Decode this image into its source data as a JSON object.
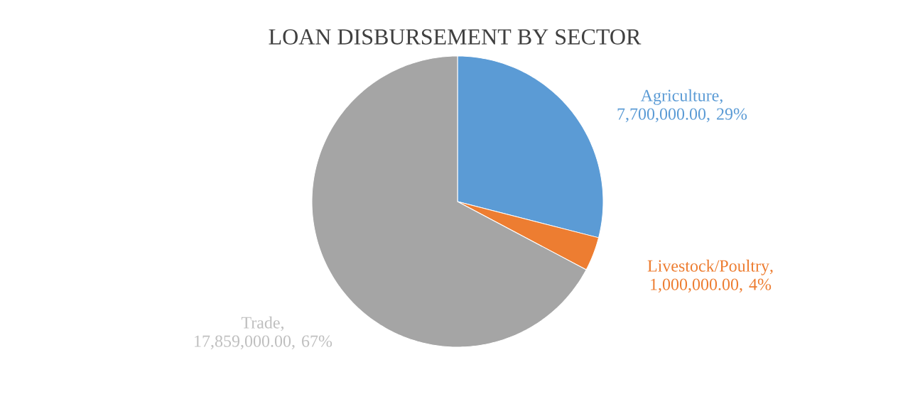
{
  "chart_data": {
    "type": "pie",
    "title": "LOAN DISBURSEMENT BY SECTOR",
    "categories": [
      "Agriculture",
      "Livestock/Poultry",
      "Trade"
    ],
    "values": [
      7700000,
      1000000,
      17859000
    ],
    "colors": [
      "#5b9bd5",
      "#ed7d31",
      "#a5a5a5"
    ],
    "value_labels": [
      ", 7,700,000.00, 29%",
      ", 1,000,000.00, 4%",
      ", 17,859,000.00, 67%"
    ]
  }
}
